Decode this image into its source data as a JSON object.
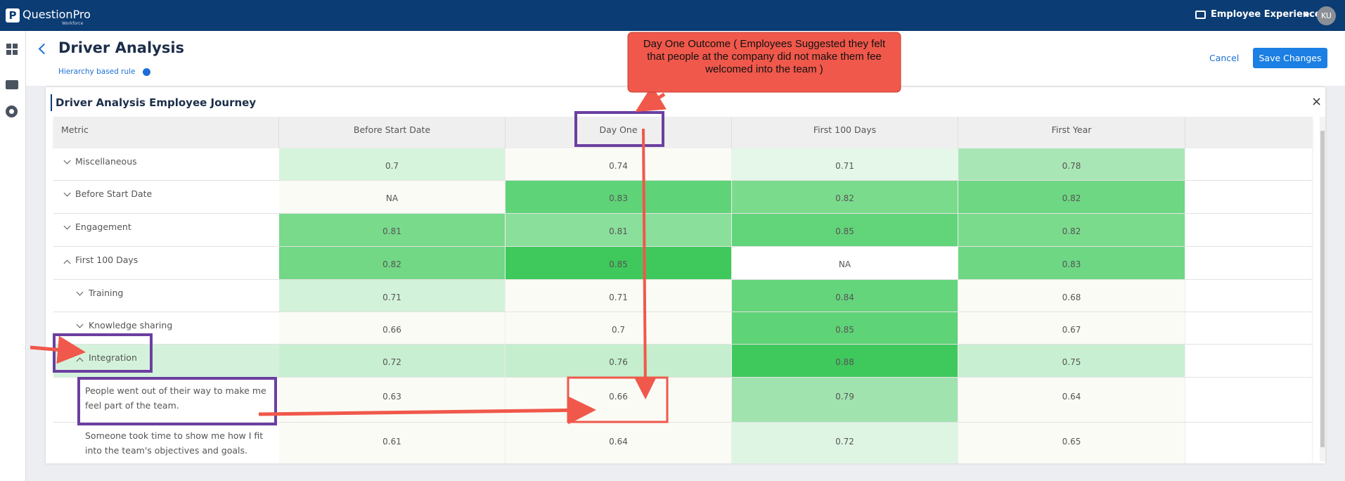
{
  "header": {
    "logo": "QuestionPro",
    "logo_sub": "Workforce",
    "product": "Employee Experience",
    "avatar": "KU"
  },
  "page": {
    "title": "Driver Analysis",
    "rule": "Hierarchy based rule",
    "cancel": "Cancel",
    "save": "Save Changes"
  },
  "panel": {
    "title": "Driver Analysis Employee Journey"
  },
  "table": {
    "columns": [
      "Metric",
      "Before Start Date",
      "Day One",
      "First 100 Days",
      "First Year"
    ],
    "rows": [
      {
        "label": "Miscellaneous",
        "level": 0,
        "toggle": "down",
        "values": [
          0.7,
          0.74,
          0.71,
          0.78
        ],
        "colors": [
          "#d6f3dc",
          "#fafbf5",
          "#e4f7e8",
          "#a9e6b5"
        ]
      },
      {
        "label": "Before Start Date",
        "level": 0,
        "toggle": "down",
        "values": [
          "NA",
          0.83,
          0.82,
          0.82
        ],
        "colors": [
          "#fafbf5",
          "#5fd377",
          "#7bdb8d",
          "#6dd783"
        ]
      },
      {
        "label": "Engagement",
        "level": 0,
        "toggle": "down",
        "values": [
          0.81,
          0.81,
          0.85,
          0.82
        ],
        "colors": [
          "#79da8c",
          "#8adf9a",
          "#62d47a",
          "#7bdb8d"
        ]
      },
      {
        "label": "First 100 Days",
        "level": 0,
        "toggle": "up",
        "values": [
          0.82,
          0.85,
          "NA",
          0.83
        ],
        "colors": [
          "#72d886",
          "#3fc95c",
          "#ffffff",
          "#6ed784"
        ]
      },
      {
        "label": "Training",
        "level": 1,
        "toggle": "down",
        "values": [
          0.71,
          0.71,
          0.84,
          0.68
        ],
        "colors": [
          "#d3f2da",
          "#fafbf5",
          "#65d57c",
          "#fafbf5"
        ]
      },
      {
        "label": "Knowledge sharing",
        "level": 1,
        "toggle": "down",
        "values": [
          0.66,
          0.7,
          0.85,
          0.67
        ],
        "colors": [
          "#fafbf5",
          "#fafbf5",
          "#5fd377",
          "#fafbf5"
        ]
      },
      {
        "label": "Integration",
        "level": 1,
        "toggle": "up",
        "label_color": "#d4f2db",
        "values": [
          0.72,
          0.76,
          0.88,
          0.75
        ],
        "colors": [
          "#c8efd1",
          "#c4eecd",
          "#3fc95c",
          "#c8efd1"
        ]
      },
      {
        "label": "People went out of their way to make me feel part of the team.",
        "level": 2,
        "toggle": null,
        "values": [
          0.63,
          0.66,
          0.79,
          0.64
        ],
        "colors": [
          "#fafbf5",
          "#fafbf5",
          "#a1e3af",
          "#fafbf5"
        ]
      },
      {
        "label": "Someone took time to show me how I fit into the team's objectives and goals.",
        "level": 2,
        "toggle": null,
        "values": [
          0.61,
          0.64,
          0.72,
          0.65
        ],
        "colors": [
          "#fafbf5",
          "#fafbf5",
          "#def5e3",
          "#fafbf5"
        ]
      }
    ]
  },
  "annotation": {
    "callout": "Day One Outcome ( Employees Suggested they felt that people at the company did not make them fee welcomed into the team )"
  }
}
